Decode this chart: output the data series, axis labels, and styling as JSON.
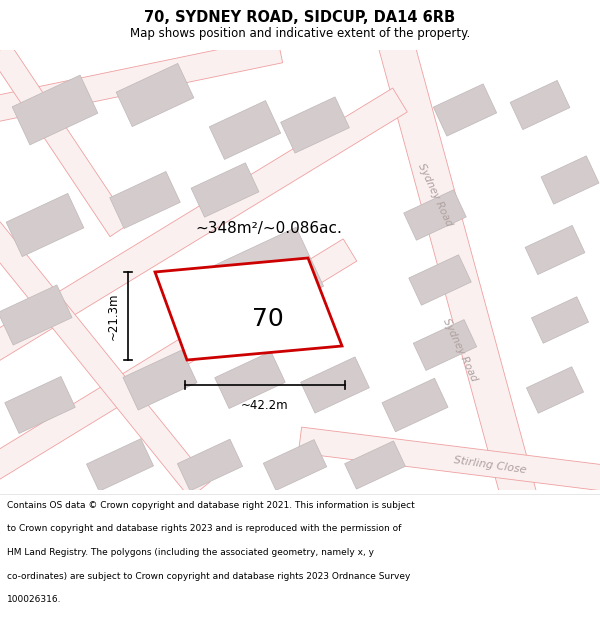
{
  "title": "70, SYDNEY ROAD, SIDCUP, DA14 6RB",
  "subtitle": "Map shows position and indicative extent of the property.",
  "area_text": "~348m²/~0.086ac.",
  "label": "70",
  "dim_width": "~42.2m",
  "dim_height": "~21.3m",
  "road_label_sydney1": "Sydney Road",
  "road_label_sydney2": "Sydney Road",
  "road_label_stirling": "Stirling Close",
  "map_bg": "#faf8f8",
  "plot_edge_color": "#cc0000",
  "building_face": "#d4cccc",
  "building_edge": "#c0b8b8",
  "road_line_color": "#f0a0a0",
  "road_fill": "#faf0f0",
  "title_fontsize": 10.5,
  "subtitle_fontsize": 8.5,
  "footer_fontsize": 6.5,
  "footer_lines": [
    "Contains OS data © Crown copyright and database right 2021. This information is subject",
    "to Crown copyright and database rights 2023 and is reproduced with the permission of",
    "HM Land Registry. The polygons (including the associated geometry, namely x, y",
    "co-ordinates) are subject to Crown copyright and database rights 2023 Ordnance Survey",
    "100026316."
  ]
}
